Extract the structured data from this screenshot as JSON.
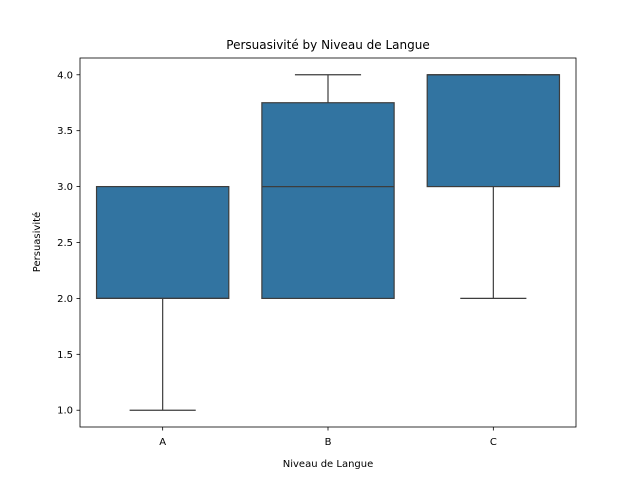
{
  "chart_data": {
    "type": "box",
    "title": "Persuasivité by Niveau de Langue",
    "xlabel": "Niveau de Langue",
    "ylabel": "Persuasivité",
    "categories": [
      "A",
      "B",
      "C"
    ],
    "boxes": [
      {
        "category": "A",
        "whisker_low": 1.0,
        "q1": 2.0,
        "median": 2.0,
        "q3": 3.0,
        "whisker_high": 3.0
      },
      {
        "category": "B",
        "whisker_low": 2.0,
        "q1": 2.0,
        "median": 3.0,
        "q3": 3.75,
        "whisker_high": 4.0
      },
      {
        "category": "C",
        "whisker_low": 2.0,
        "q1": 3.0,
        "median": 4.0,
        "q3": 4.0,
        "whisker_high": 4.0
      }
    ],
    "ylim": [
      0.85,
      4.15
    ],
    "yticks": [
      "1.0",
      "1.5",
      "2.0",
      "2.5",
      "3.0",
      "3.5",
      "4.0"
    ],
    "box_color": "#3274a1",
    "line_color": "#3d3d3d",
    "grid": false,
    "legend": "none"
  }
}
